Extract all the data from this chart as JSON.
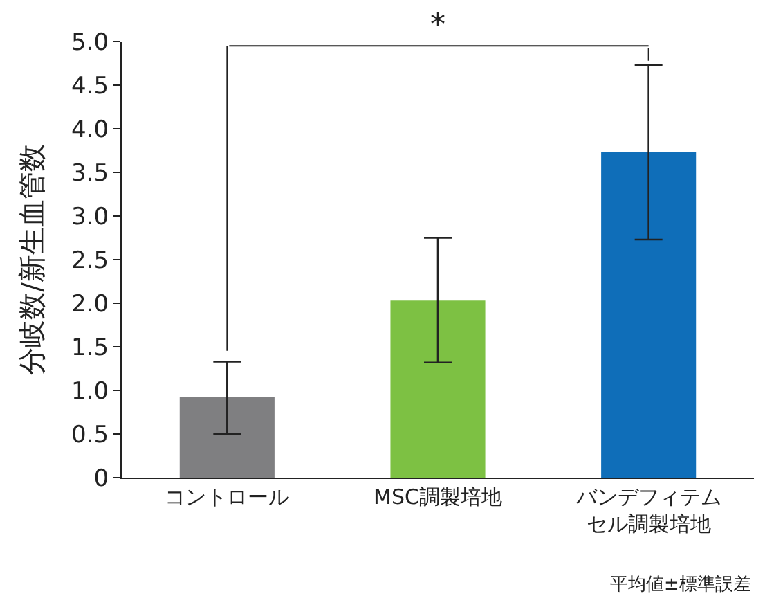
{
  "chart_data": {
    "type": "bar",
    "ylabel": "分岐数/新生血管数",
    "categories": [
      "コントロール",
      "MSC調製培地",
      "バンデフィテムセル調製培地"
    ],
    "values": [
      0.92,
      2.03,
      3.73
    ],
    "colors": [
      "#7f7f81",
      "#7dc143",
      "#0f6eb9"
    ],
    "errors": [
      [
        0.5,
        1.33
      ],
      [
        1.32,
        2.75
      ],
      [
        2.73,
        4.73
      ]
    ],
    "ylim": [
      0,
      5.0
    ],
    "yticks": [
      {
        "value": 0,
        "label": "0"
      },
      {
        "value": 0.5,
        "label": "0.5"
      },
      {
        "value": 1,
        "label": "1.0"
      },
      {
        "value": 1.5,
        "label": "1.5"
      },
      {
        "value": 2,
        "label": "2.0"
      },
      {
        "value": 2.5,
        "label": "2.5"
      },
      {
        "value": 3,
        "label": "3.0"
      },
      {
        "value": 3.5,
        "label": "3.5"
      },
      {
        "value": 4,
        "label": "4.0"
      },
      {
        "value": 4.5,
        "label": "4.5"
      },
      {
        "value": 5,
        "label": "5.0"
      }
    ],
    "annotations": [
      "*",
      "平均値±標準誤差"
    ]
  }
}
